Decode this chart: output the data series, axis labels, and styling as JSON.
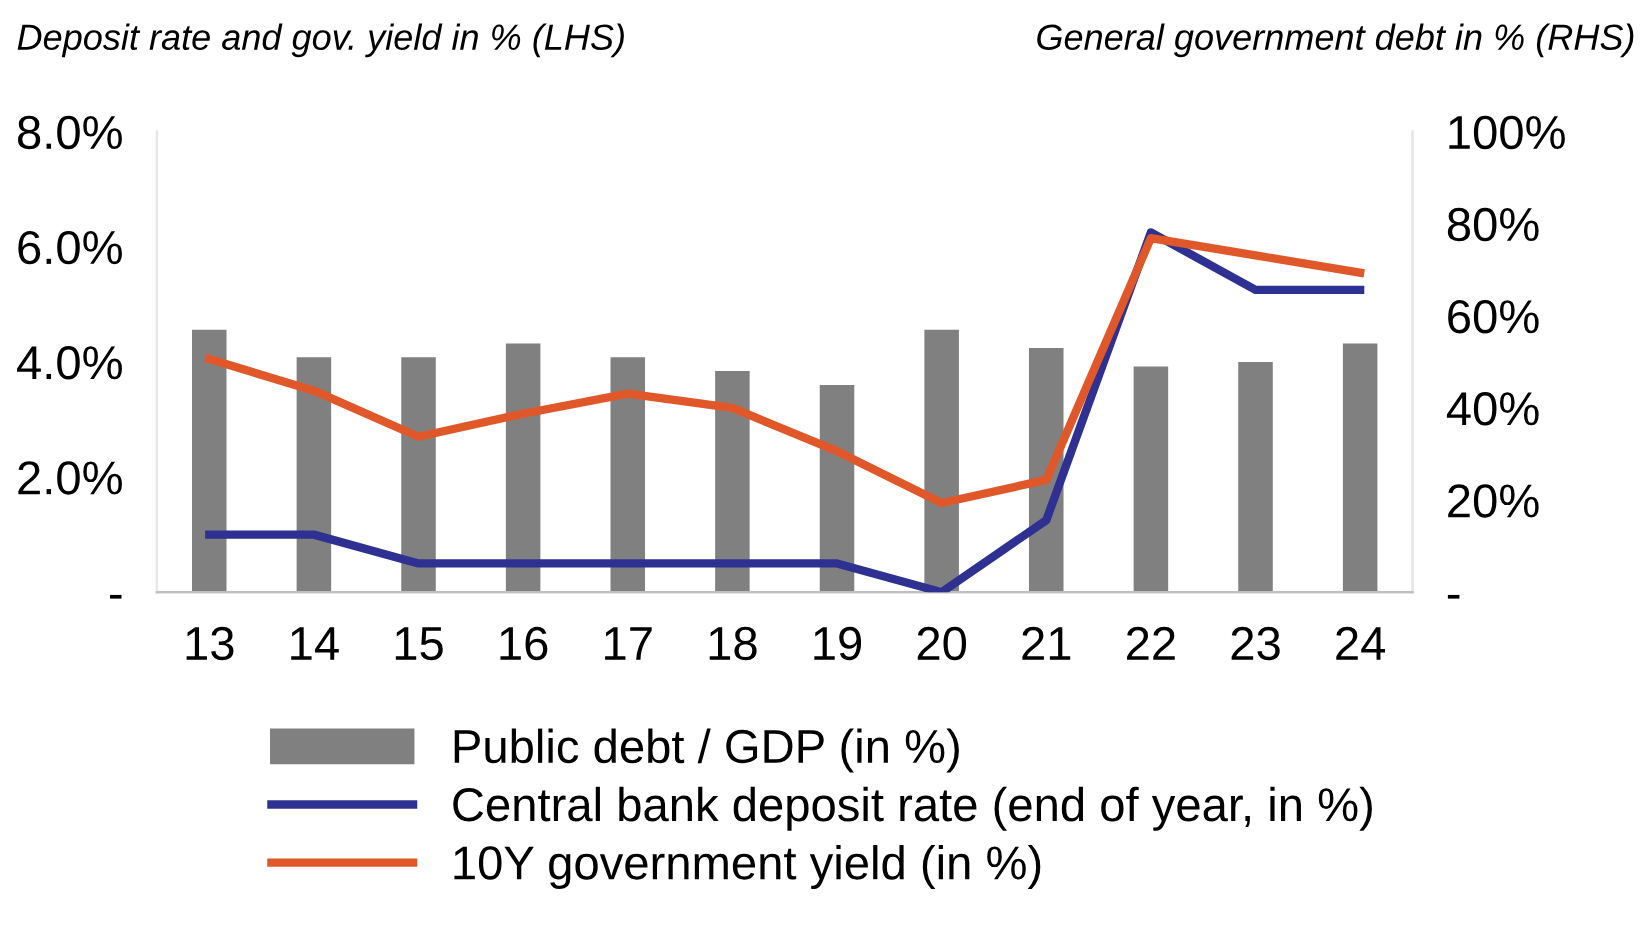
{
  "chart_data": {
    "type": "bar",
    "ylabel": "Deposit rate and gov. yield in % (LHS)",
    "y2label": "General government debt in % (RHS)",
    "categories": [
      "13",
      "14",
      "15",
      "16",
      "17",
      "18",
      "19",
      "20",
      "21",
      "22",
      "23",
      "24"
    ],
    "series": [
      {
        "name": "Public debt / GDP (in %)",
        "axis": "y2",
        "color": "#808080",
        "values": [
          57,
          51,
          51,
          54,
          51,
          48,
          45,
          57,
          53,
          49,
          50,
          54
        ]
      },
      {
        "name": "Central bank deposit rate (end of year, in %)",
        "type": "line",
        "color": "#2e3192",
        "values": [
          1.0,
          1.0,
          0.5,
          0.5,
          0.5,
          0.5,
          0.5,
          0.0,
          1.25,
          6.25,
          5.25,
          5.25
        ]
      },
      {
        "name": "10Y government yield (in %)",
        "type": "line",
        "color": "#e0582a",
        "values": [
          4.05,
          3.5,
          2.7,
          3.1,
          3.45,
          3.2,
          2.45,
          1.55,
          1.95,
          6.15,
          5.85,
          5.55
        ]
      }
    ],
    "ylim": [
      0,
      8
    ],
    "yticks": [
      {
        "value": 0,
        "label": "-"
      },
      {
        "value": 2,
        "label": "2.0%"
      },
      {
        "value": 4,
        "label": "4.0%"
      },
      {
        "value": 6,
        "label": "6.0%"
      },
      {
        "value": 8,
        "label": "8.0%"
      }
    ],
    "y2lim": [
      0,
      100
    ],
    "y2ticks": [
      {
        "value": 0,
        "label": "-"
      },
      {
        "value": 20,
        "label": "20%"
      },
      {
        "value": 40,
        "label": "40%"
      },
      {
        "value": 60,
        "label": "60%"
      },
      {
        "value": 80,
        "label": "80%"
      },
      {
        "value": 100,
        "label": "100%"
      }
    ],
    "grid": false,
    "legend": "bottom",
    "marker": "none",
    "line_style": "solid"
  }
}
